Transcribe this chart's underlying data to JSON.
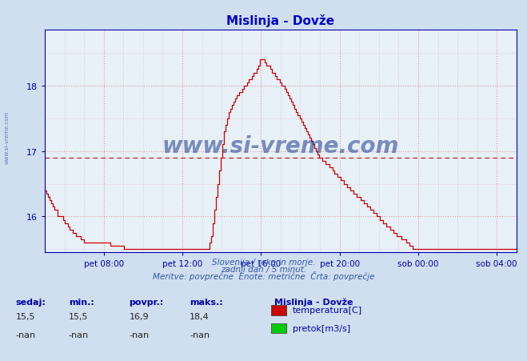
{
  "title": "Mislinja - Dovže",
  "title_color": "#0000cc",
  "bg_color": "#d0dff0",
  "plot_bg_color": "#e8f0f8",
  "line_color": "#cc0000",
  "avg_line_color": "#cc0000",
  "avg_value": 16.9,
  "ylim_min": 15.45,
  "ylim_max": 18.85,
  "yticks": [
    16,
    17,
    18
  ],
  "grid_color": "#dd8888",
  "xlabel_color": "#0000aa",
  "ylabel_color": "#0000aa",
  "axis_color": "#0000aa",
  "watermark_text": "www.si-vreme.com",
  "watermark_color": "#1a3a8a",
  "sub_text1": "Slovenija / reke in morje.",
  "sub_text2": "zadnji dan / 5 minut.",
  "sub_text3": "Meritve: povprečne  Enote: metrične  Črta: povprečje",
  "legend_title": "Mislinja - Dovže",
  "legend_entries": [
    "temperatura[C]",
    "pretok[m3/s]"
  ],
  "legend_colors": [
    "#cc0000",
    "#00cc00"
  ],
  "stats_headers": [
    "sedaj:",
    "min.:",
    "povpr.:",
    "maks.:"
  ],
  "stats_temp": [
    "15,5",
    "15,5",
    "16,9",
    "18,4"
  ],
  "stats_pretok": [
    "-nan",
    "-nan",
    "-nan",
    "-nan"
  ],
  "xtick_labels": [
    "pet 08:00",
    "pet 12:00",
    "pet 16:00",
    "pet 20:00",
    "sob 00:00",
    "sob 04:00"
  ],
  "temp_data": [
    16.4,
    16.35,
    16.3,
    16.25,
    16.2,
    16.15,
    16.1,
    16.1,
    16.0,
    16.0,
    16.0,
    15.95,
    15.9,
    15.9,
    15.85,
    15.8,
    15.8,
    15.75,
    15.75,
    15.7,
    15.7,
    15.7,
    15.65,
    15.65,
    15.6,
    15.6,
    15.6,
    15.6,
    15.6,
    15.6,
    15.6,
    15.6,
    15.6,
    15.6,
    15.6,
    15.6,
    15.6,
    15.6,
    15.6,
    15.6,
    15.55,
    15.55,
    15.55,
    15.55,
    15.55,
    15.55,
    15.55,
    15.55,
    15.5,
    15.5,
    15.5,
    15.5,
    15.5,
    15.5,
    15.5,
    15.5,
    15.5,
    15.5,
    15.5,
    15.5,
    15.5,
    15.5,
    15.5,
    15.5,
    15.5,
    15.5,
    15.5,
    15.5,
    15.5,
    15.5,
    15.5,
    15.5,
    15.5,
    15.5,
    15.5,
    15.5,
    15.5,
    15.5,
    15.5,
    15.5,
    15.5,
    15.5,
    15.5,
    15.5,
    15.5,
    15.5,
    15.5,
    15.5,
    15.5,
    15.5,
    15.5,
    15.5,
    15.5,
    15.5,
    15.5,
    15.5,
    15.5,
    15.5,
    15.5,
    15.5,
    15.6,
    15.7,
    15.9,
    16.1,
    16.3,
    16.5,
    16.7,
    16.9,
    17.1,
    17.3,
    17.4,
    17.5,
    17.6,
    17.65,
    17.7,
    17.75,
    17.8,
    17.85,
    17.9,
    17.9,
    17.95,
    18.0,
    18.0,
    18.05,
    18.1,
    18.1,
    18.15,
    18.2,
    18.2,
    18.25,
    18.3,
    18.4,
    18.4,
    18.4,
    18.35,
    18.3,
    18.3,
    18.25,
    18.2,
    18.2,
    18.15,
    18.1,
    18.1,
    18.05,
    18.0,
    18.0,
    17.95,
    17.9,
    17.85,
    17.8,
    17.75,
    17.7,
    17.65,
    17.6,
    17.55,
    17.5,
    17.45,
    17.4,
    17.35,
    17.3,
    17.25,
    17.2,
    17.15,
    17.1,
    17.05,
    17.0,
    16.95,
    16.9,
    16.9,
    16.85,
    16.85,
    16.8,
    16.8,
    16.75,
    16.75,
    16.7,
    16.65,
    16.65,
    16.6,
    16.6,
    16.55,
    16.55,
    16.5,
    16.5,
    16.45,
    16.45,
    16.4,
    16.4,
    16.35,
    16.35,
    16.3,
    16.3,
    16.25,
    16.25,
    16.2,
    16.2,
    16.15,
    16.15,
    16.1,
    16.1,
    16.05,
    16.05,
    16.0,
    16.0,
    15.95,
    15.95,
    15.9,
    15.9,
    15.85,
    15.85,
    15.8,
    15.8,
    15.75,
    15.75,
    15.7,
    15.7,
    15.7,
    15.65,
    15.65,
    15.65,
    15.6,
    15.6,
    15.55,
    15.55,
    15.5,
    15.5,
    15.5,
    15.5,
    15.5,
    15.5,
    15.5,
    15.5,
    15.5,
    15.5,
    15.5,
    15.5,
    15.5,
    15.5,
    15.5,
    15.5,
    15.5,
    15.5,
    15.5,
    15.5,
    15.5,
    15.5,
    15.5,
    15.5,
    15.5,
    15.5,
    15.5,
    15.5,
    15.5,
    15.5,
    15.5,
    15.5,
    15.5,
    15.5,
    15.5,
    15.5,
    15.5,
    15.5,
    15.5,
    15.5,
    15.5,
    15.5,
    15.5,
    15.5,
    15.5,
    15.5,
    15.5,
    15.5,
    15.5,
    15.5,
    15.5,
    15.5,
    15.5,
    15.5,
    15.5,
    15.5,
    15.5,
    15.5,
    15.5,
    15.5,
    15.5,
    15.5,
    15.5,
    15.5
  ]
}
